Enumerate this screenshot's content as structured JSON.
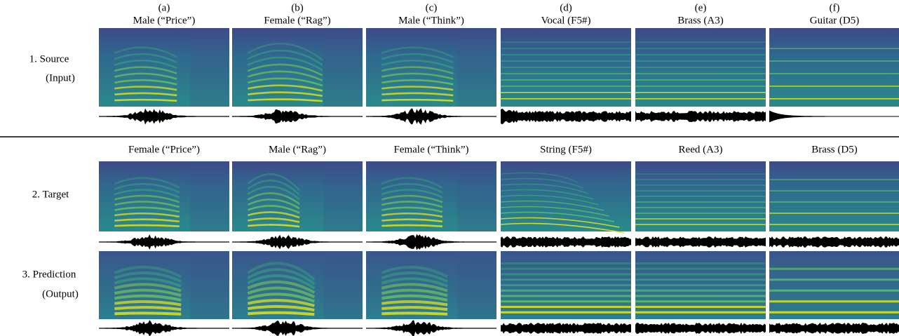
{
  "columns": [
    {
      "letter": "(a)",
      "source": "Male (“Price”)",
      "target": "Female (“Price”)"
    },
    {
      "letter": "(b)",
      "source": "Female (“Rag”)",
      "target": "Male (“Rag”)"
    },
    {
      "letter": "(c)",
      "source": "Male (“Think”)",
      "target": "Female (“Think”)"
    },
    {
      "letter": "(d)",
      "source": "Vocal (F5#)",
      "target": "String (F5#)"
    },
    {
      "letter": "(e)",
      "source": "Brass (A3)",
      "target": "Reed (A3)"
    },
    {
      "letter": "(f)",
      "source": "Guitar (D5)",
      "target": "Brass (D5)"
    }
  ],
  "rows": [
    {
      "label": [
        "1. Source",
        "(Input)"
      ]
    },
    {
      "label": [
        "2. Target"
      ]
    },
    {
      "label": [
        "3. Prediction",
        "(Output)"
      ]
    }
  ]
}
